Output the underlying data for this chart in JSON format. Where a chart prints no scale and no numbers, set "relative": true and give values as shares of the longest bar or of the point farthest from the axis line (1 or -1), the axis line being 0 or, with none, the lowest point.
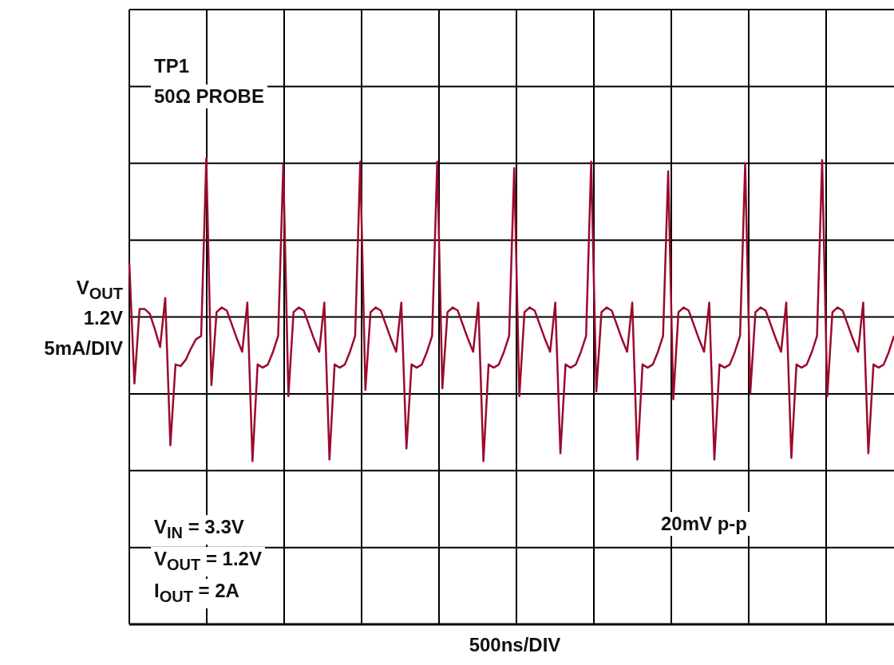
{
  "chart_data": {
    "type": "line",
    "relative": true,
    "annotations": [
      "TP1",
      "50Ω PROBE",
      "V$_{OUT}$",
      "1.2V",
      "5mA/DIV",
      "20mV p-p",
      "V$_{IN}$ = 3.3V",
      "V$_{OUT}$ = 1.2V",
      "I$_{OUT}$ = 2A",
      "500ns/DIV"
    ],
    "categories": [
      null,
      null,
      null,
      null,
      null,
      null,
      null,
      null,
      null,
      null,
      null,
      null,
      null,
      null,
      null,
      null,
      null,
      null,
      null,
      null,
      null,
      null,
      null,
      null,
      null,
      null,
      null,
      null,
      null,
      null,
      null,
      null,
      null,
      null,
      null,
      null,
      null,
      null,
      null,
      null,
      null,
      null,
      null,
      null,
      null,
      null,
      null,
      null,
      null,
      null,
      null,
      null,
      null,
      null,
      null,
      null,
      null,
      null,
      null,
      null,
      null,
      null,
      null,
      null,
      null,
      null,
      null,
      null,
      null,
      null,
      null,
      null,
      null,
      null,
      null,
      null,
      null,
      null,
      null,
      null,
      null,
      null,
      null,
      null,
      null,
      null,
      null,
      null,
      null,
      null,
      null,
      null,
      null,
      null,
      null,
      null,
      null,
      null,
      null,
      null,
      null,
      null,
      null,
      null,
      null,
      null,
      null,
      null,
      null,
      null,
      null,
      null,
      null,
      null,
      null,
      null,
      null,
      null,
      null,
      null,
      null,
      null,
      null,
      null,
      null,
      null,
      null,
      null,
      null,
      null,
      null,
      null,
      null,
      null,
      null,
      null,
      null,
      null,
      null,
      null,
      null,
      null,
      null,
      null,
      null,
      null,
      null,
      null,
      null,
      null
    ],
    "grid": true,
    "marker": "none",
    "line_style": "solid",
    "series": [
      {
        "color": "#9b0a2e",
        "values": [
          0.34,
          -0.42,
          0.05,
          0.05,
          0.02,
          -0.08,
          -0.19,
          0.12,
          -0.81,
          -0.3,
          -0.31,
          -0.27,
          -0.2,
          -0.14,
          -0.12,
          1.0,
          -0.43,
          0.03,
          0.06,
          0.04,
          -0.05,
          -0.14,
          -0.22,
          0.09,
          -0.91,
          -0.3,
          -0.32,
          -0.3,
          -0.22,
          -0.12,
          0.96,
          -0.5,
          0.03,
          0.06,
          0.04,
          -0.05,
          -0.14,
          -0.22,
          0.09,
          -0.9,
          -0.3,
          -0.32,
          -0.3,
          -0.22,
          -0.12,
          0.98,
          -0.46,
          0.03,
          0.06,
          0.04,
          -0.05,
          -0.14,
          -0.22,
          0.09,
          -0.83,
          -0.3,
          -0.32,
          -0.3,
          -0.22,
          -0.12,
          0.98,
          -0.45,
          0.03,
          0.06,
          0.04,
          -0.05,
          -0.14,
          -0.22,
          0.09,
          -0.91,
          -0.3,
          -0.32,
          -0.3,
          -0.22,
          -0.12,
          0.94,
          -0.5,
          0.03,
          0.06,
          0.04,
          -0.05,
          -0.14,
          -0.22,
          0.09,
          -0.86,
          -0.3,
          -0.32,
          -0.3,
          -0.22,
          -0.12,
          0.98,
          -0.47,
          0.03,
          0.06,
          0.04,
          -0.05,
          -0.14,
          -0.22,
          0.09,
          -0.9,
          -0.3,
          -0.32,
          -0.3,
          -0.22,
          -0.12,
          0.92,
          -0.52,
          0.03,
          0.06,
          0.04,
          -0.05,
          -0.14,
          -0.22,
          0.09,
          -0.9,
          -0.3,
          -0.32,
          -0.3,
          -0.22,
          -0.12,
          0.97,
          -0.48,
          0.03,
          0.06,
          0.04,
          -0.05,
          -0.14,
          -0.22,
          0.09,
          -0.89,
          -0.3,
          -0.32,
          -0.3,
          -0.22,
          -0.12,
          0.99,
          -0.5,
          0.03,
          0.06,
          0.04,
          -0.05,
          -0.14,
          -0.22,
          0.09,
          -0.86,
          -0.3,
          -0.32,
          -0.3,
          -0.22,
          -0.12
        ]
      }
    ]
  }
}
